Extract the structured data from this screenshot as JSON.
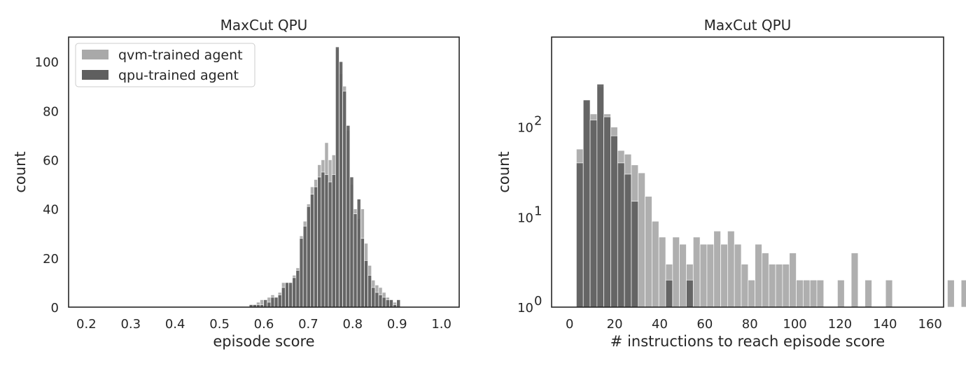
{
  "chart_data": [
    {
      "type": "histogram",
      "title": "MaxCut QPU",
      "xlabel": "episode score",
      "ylabel": "count",
      "xlim": [
        0.16,
        1.04
      ],
      "ylim": [
        0,
        110
      ],
      "xticks": [
        0.2,
        0.3,
        0.4,
        0.5,
        0.6,
        0.7,
        0.8,
        0.9,
        1.0
      ],
      "xtick_labels": [
        "0.2",
        "0.3",
        "0.4",
        "0.5",
        "0.6",
        "0.7",
        "0.8",
        "0.9",
        "1.0"
      ],
      "yticks": [
        0,
        20,
        40,
        60,
        80,
        100
      ],
      "ytick_labels": [
        "0",
        "20",
        "40",
        "60",
        "80",
        "100"
      ],
      "legend_position": "top-left",
      "bin_width": 0.0081,
      "bin_start": 0.567,
      "series": [
        {
          "name": "qvm-trained agent",
          "color": "#a9a9a9",
          "values": [
            1,
            1,
            2,
            3,
            1,
            4,
            5,
            4,
            6,
            10,
            10,
            9,
            13,
            16,
            29,
            35,
            42,
            49,
            52,
            58,
            60,
            67,
            60,
            62,
            105,
            95,
            90,
            72,
            50,
            40,
            36,
            40,
            26,
            17,
            11,
            9,
            8,
            6,
            4,
            3,
            2,
            3
          ]
        },
        {
          "name": "qpu-trained agent",
          "color": "#5f5f5f",
          "values": [
            1,
            1,
            1,
            1,
            3,
            2,
            4,
            4,
            5,
            8,
            10,
            10,
            12,
            15,
            28,
            33,
            41,
            46,
            49,
            53,
            55,
            54,
            51,
            54,
            106,
            100,
            88,
            74,
            53,
            38,
            44,
            28,
            19,
            13,
            8,
            6,
            5,
            4,
            3,
            3,
            1,
            3
          ]
        }
      ]
    },
    {
      "type": "histogram",
      "title": "MaxCut QPU",
      "xlabel": "# instructions to reach episode score",
      "ylabel": "count",
      "xlim": [
        -8,
        166
      ],
      "ylim": [
        1,
        1000
      ],
      "log_y": true,
      "xticks": [
        0,
        20,
        40,
        60,
        80,
        100,
        120,
        140,
        160
      ],
      "xtick_labels": [
        "0",
        "20",
        "40",
        "60",
        "80",
        "100",
        "120",
        "140",
        "160"
      ],
      "yticks": [
        1,
        10,
        100
      ],
      "ytick_labels": [
        "10",
        "10",
        "10"
      ],
      "ytick_exponents": [
        "0",
        "1",
        "2"
      ],
      "bin_width": 3.05,
      "bin_start": 3,
      "series": [
        {
          "name": "qvm-trained agent",
          "color": "#a9a9a9",
          "values": [
            57,
            200,
            140,
            280,
            140,
            100,
            55,
            50,
            38,
            31,
            17,
            9,
            6,
            3,
            6,
            5,
            3,
            6,
            5,
            5,
            7,
            5,
            7,
            5,
            3,
            2,
            5,
            4,
            3,
            3,
            3,
            4,
            2,
            2,
            2,
            2,
            0,
            0,
            2,
            0,
            4,
            0,
            2,
            0,
            0,
            2,
            0,
            0,
            0,
            0,
            0,
            0,
            0,
            0,
            2,
            0,
            2,
            0,
            0,
            0,
            0,
            0,
            0,
            2
          ]
        },
        {
          "name": "qpu-trained agent",
          "color": "#5f5f5f",
          "values": [
            40,
            200,
            120,
            300,
            130,
            80,
            40,
            30,
            15,
            0,
            0,
            0,
            0,
            2,
            0,
            0,
            2,
            0,
            0,
            0,
            0,
            0,
            0,
            0,
            0,
            0,
            0,
            0,
            0,
            0,
            0,
            0,
            0,
            0,
            0,
            0,
            0,
            0,
            0,
            0,
            0,
            0,
            0,
            0,
            0,
            0,
            0,
            0,
            0,
            0,
            0,
            0,
            0,
            0,
            0,
            0,
            0,
            0,
            0,
            0,
            0,
            0,
            0,
            0
          ]
        }
      ]
    }
  ]
}
